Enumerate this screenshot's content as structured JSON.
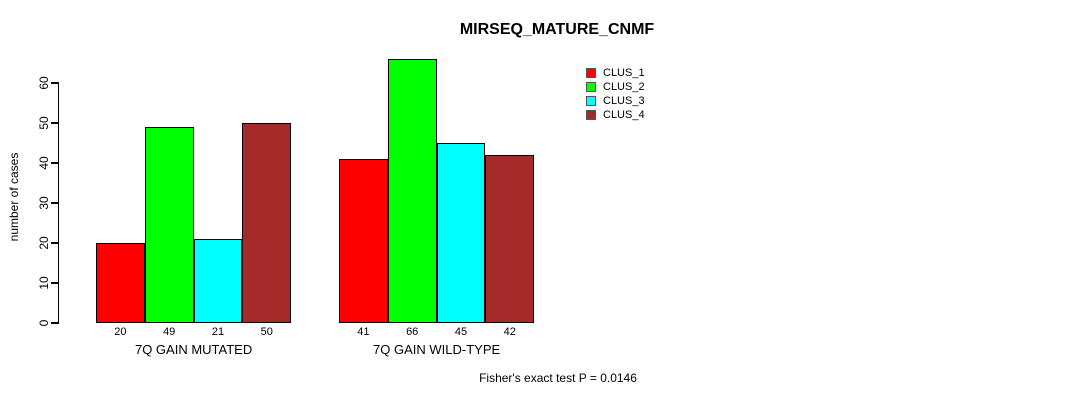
{
  "chart_data": {
    "type": "bar",
    "title": "MIRSEQ_MATURE_CNMF",
    "ylabel": "number of cases",
    "xlabel": "",
    "ylim": [
      0,
      66
    ],
    "yticks": [
      0,
      10,
      20,
      30,
      40,
      50,
      60
    ],
    "grid": false,
    "legend_position": "top-right",
    "categories": [
      "7Q GAIN MUTATED",
      "7Q GAIN WILD-TYPE"
    ],
    "series": [
      {
        "name": "CLUS_1",
        "color": "#ff0000",
        "values": [
          20,
          41
        ]
      },
      {
        "name": "CLUS_2",
        "color": "#00ff00",
        "values": [
          49,
          66
        ]
      },
      {
        "name": "CLUS_3",
        "color": "#00ffff",
        "values": [
          21,
          45
        ]
      },
      {
        "name": "CLUS_4",
        "color": "#a52a2a",
        "values": [
          50,
          42
        ]
      }
    ],
    "bar_value_labels_shown": true,
    "annotation": "Fisher's exact test P = 0.0146"
  }
}
